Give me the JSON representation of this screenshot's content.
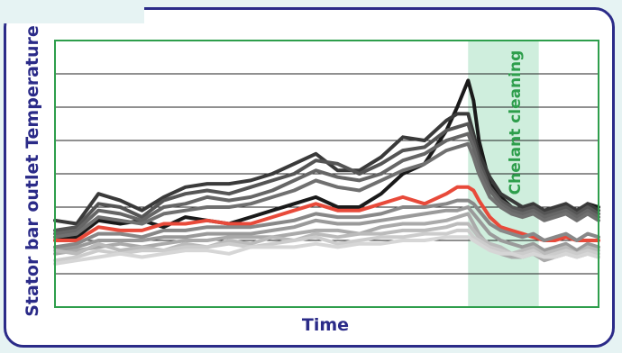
{
  "chart_data": {
    "type": "line",
    "xlabel": "Time",
    "ylabel": "Stator bar outlet Temperature",
    "xlim": [
      0,
      100
    ],
    "ylim": [
      0,
      8
    ],
    "grid": "horizontal",
    "annotation": {
      "label": "Chelant cleaning",
      "x_start": 76,
      "x_end": 89,
      "color": "#cfeedd",
      "text_color": "#2e9e4c"
    },
    "colors": {
      "frame": "#2e9e4c",
      "border": "#2b2b88",
      "highlight": "#e84a3a"
    },
    "x": [
      0,
      4,
      8,
      12,
      16,
      20,
      24,
      28,
      32,
      36,
      40,
      44,
      48,
      52,
      56,
      60,
      64,
      68,
      72,
      74,
      76,
      77,
      78,
      80,
      82,
      84,
      86,
      88,
      90,
      92,
      94,
      96,
      98,
      100
    ],
    "series": [
      {
        "color": "#1a1a1a",
        "values": [
          2.0,
          2.1,
          2.6,
          2.5,
          2.6,
          2.4,
          2.7,
          2.6,
          2.5,
          2.7,
          2.9,
          3.1,
          3.3,
          3.0,
          3.0,
          3.4,
          4.0,
          4.3,
          5.3,
          6.0,
          6.8,
          6.2,
          5.0,
          3.7,
          3.3,
          3.0,
          2.9,
          3.0,
          2.8,
          2.9,
          3.0,
          2.8,
          3.1,
          3.0
        ]
      },
      {
        "color": "#3a3a3a",
        "values": [
          2.6,
          2.5,
          3.4,
          3.2,
          2.9,
          3.3,
          3.6,
          3.7,
          3.7,
          3.8,
          4.0,
          4.3,
          4.6,
          4.1,
          4.1,
          4.5,
          5.1,
          5.0,
          5.6,
          5.8,
          5.8,
          5.2,
          4.6,
          3.9,
          3.4,
          3.2,
          3.0,
          3.1,
          2.9,
          3.0,
          3.1,
          2.9,
          3.1,
          2.9
        ]
      },
      {
        "color": "#555555",
        "values": [
          2.3,
          2.4,
          3.1,
          3.0,
          2.7,
          3.2,
          3.4,
          3.5,
          3.4,
          3.6,
          3.8,
          4.0,
          4.4,
          4.3,
          4.0,
          4.3,
          4.7,
          4.8,
          5.3,
          5.4,
          5.5,
          5.0,
          4.4,
          3.6,
          3.2,
          3.0,
          2.9,
          3.0,
          2.8,
          2.9,
          3.0,
          2.8,
          3.0,
          2.8
        ]
      },
      {
        "color": "#666666",
        "values": [
          2.2,
          2.3,
          2.9,
          2.8,
          2.6,
          3.0,
          3.1,
          3.3,
          3.2,
          3.3,
          3.5,
          3.8,
          4.1,
          3.9,
          3.8,
          4.0,
          4.4,
          4.6,
          5.0,
          5.1,
          5.2,
          4.8,
          4.2,
          3.5,
          3.1,
          2.9,
          2.8,
          2.9,
          2.7,
          2.8,
          2.9,
          2.7,
          2.9,
          2.7
        ]
      },
      {
        "color": "#707070",
        "values": [
          2.1,
          2.2,
          2.7,
          2.6,
          2.5,
          2.8,
          2.9,
          3.0,
          3.0,
          3.1,
          3.3,
          3.5,
          3.8,
          3.6,
          3.5,
          3.8,
          4.1,
          4.3,
          4.7,
          4.8,
          4.9,
          4.5,
          4.0,
          3.3,
          3.0,
          2.8,
          2.7,
          2.8,
          2.6,
          2.7,
          2.8,
          2.6,
          2.8,
          2.6
        ]
      },
      {
        "color": "#e84a3a",
        "values": [
          2.0,
          2.0,
          2.4,
          2.3,
          2.3,
          2.5,
          2.5,
          2.6,
          2.5,
          2.5,
          2.7,
          2.9,
          3.1,
          2.9,
          2.9,
          3.1,
          3.3,
          3.1,
          3.4,
          3.6,
          3.6,
          3.5,
          3.2,
          2.7,
          2.4,
          2.3,
          2.2,
          2.1,
          2.0,
          2.0,
          2.1,
          2.0,
          2.0,
          2.0
        ]
      },
      {
        "color": "#888888",
        "values": [
          1.8,
          1.9,
          2.2,
          2.2,
          2.1,
          2.3,
          2.3,
          2.4,
          2.4,
          2.4,
          2.5,
          2.6,
          2.8,
          2.7,
          2.7,
          2.8,
          3.0,
          3.0,
          3.1,
          3.2,
          3.2,
          3.1,
          2.9,
          2.5,
          2.3,
          2.2,
          2.1,
          2.2,
          2.0,
          2.1,
          2.2,
          2.0,
          2.2,
          2.1
        ]
      },
      {
        "color": "#9a9a9a",
        "values": [
          1.7,
          1.8,
          2.0,
          2.0,
          2.0,
          2.1,
          2.1,
          2.2,
          2.2,
          2.2,
          2.3,
          2.4,
          2.6,
          2.5,
          2.5,
          2.6,
          2.7,
          2.8,
          2.9,
          2.9,
          3.0,
          2.8,
          2.6,
          2.2,
          2.0,
          1.9,
          1.8,
          1.9,
          1.7,
          1.8,
          1.9,
          1.7,
          1.9,
          1.8
        ]
      },
      {
        "color": "#aaaaaa",
        "values": [
          1.6,
          1.7,
          1.8,
          1.9,
          1.8,
          1.9,
          2.0,
          2.0,
          2.1,
          2.1,
          2.1,
          2.2,
          2.3,
          2.3,
          2.2,
          2.4,
          2.5,
          2.5,
          2.6,
          2.7,
          2.8,
          2.5,
          2.2,
          1.8,
          1.6,
          1.5,
          1.5,
          1.6,
          1.4,
          1.5,
          1.6,
          1.5,
          1.6,
          1.5
        ]
      },
      {
        "color": "#bbbbbb",
        "values": [
          1.7,
          1.6,
          1.9,
          1.7,
          1.8,
          1.7,
          1.9,
          1.8,
          2.0,
          1.9,
          2.1,
          2.0,
          2.2,
          2.1,
          2.2,
          2.2,
          2.3,
          2.3,
          2.4,
          2.5,
          2.5,
          2.3,
          2.1,
          1.9,
          1.8,
          1.6,
          1.7,
          1.8,
          1.6,
          1.7,
          1.8,
          1.6,
          1.8,
          1.7
        ]
      },
      {
        "color": "#cccccc",
        "values": [
          1.4,
          1.5,
          1.7,
          1.6,
          1.7,
          1.7,
          1.8,
          1.8,
          1.9,
          1.8,
          1.9,
          2.0,
          2.1,
          1.9,
          2.0,
          2.1,
          2.1,
          2.2,
          2.2,
          2.3,
          2.3,
          2.1,
          2.0,
          1.8,
          1.7,
          1.6,
          1.6,
          1.7,
          1.5,
          1.6,
          1.7,
          1.6,
          1.7,
          1.6
        ]
      },
      {
        "color": "#d6d6d6",
        "values": [
          1.3,
          1.4,
          1.5,
          1.6,
          1.5,
          1.6,
          1.7,
          1.7,
          1.6,
          1.8,
          1.8,
          1.8,
          1.9,
          1.8,
          1.9,
          1.9,
          2.0,
          2.0,
          2.1,
          2.1,
          2.1,
          2.0,
          1.9,
          1.7,
          1.6,
          1.6,
          1.5,
          1.6,
          1.5,
          1.5,
          1.6,
          1.5,
          1.6,
          1.5
        ]
      }
    ]
  }
}
